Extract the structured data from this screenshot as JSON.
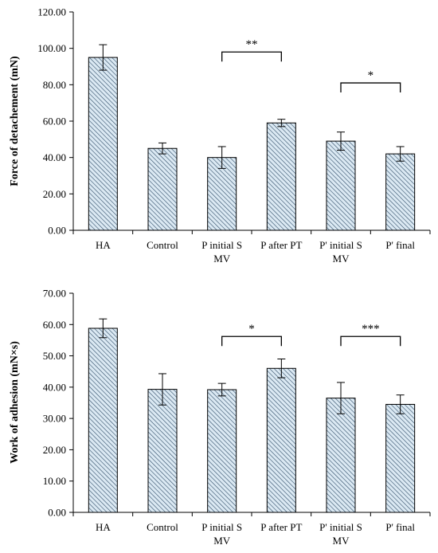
{
  "chart_data": [
    {
      "type": "bar",
      "ylabel": "Force of detachement (mN)",
      "ylim": [
        0,
        120
      ],
      "yticks": [
        "0.00",
        "20.00",
        "40.00",
        "60.00",
        "80.00",
        "100.00",
        "120.00"
      ],
      "categories": [
        [
          "HA"
        ],
        [
          "Control"
        ],
        [
          "P initial S",
          "MV"
        ],
        [
          "P after PT"
        ],
        [
          "P' initial S",
          "MV"
        ],
        [
          "P' final"
        ]
      ],
      "values": [
        95,
        45,
        40,
        59,
        49,
        42
      ],
      "errors": [
        7,
        3,
        6,
        2,
        5,
        4
      ],
      "significance": [
        {
          "from": 2,
          "to": 3,
          "label": "**",
          "level": 98
        },
        {
          "from": 4,
          "to": 5,
          "label": "*",
          "level": 81
        }
      ],
      "bar_fill": "#dbe9f3",
      "bar_hatch": "#2e4a66"
    },
    {
      "type": "bar",
      "ylabel": "Work of adhesion (mN×s)",
      "ylim": [
        0,
        70
      ],
      "yticks": [
        "0.00",
        "10.00",
        "20.00",
        "30.00",
        "40.00",
        "50.00",
        "60.00",
        "70.00"
      ],
      "categories": [
        [
          "HA"
        ],
        [
          "Control"
        ],
        [
          "P initial S",
          "MV"
        ],
        [
          "P after PT"
        ],
        [
          "P' initial S",
          "MV"
        ],
        [
          "P' final"
        ]
      ],
      "values": [
        58.8,
        39.3,
        39.2,
        46.0,
        36.5,
        34.5
      ],
      "errors": [
        3.0,
        5.0,
        2.0,
        3.0,
        5.0,
        3.0
      ],
      "significance": [
        {
          "from": 2,
          "to": 3,
          "label": "*",
          "level": 56.2
        },
        {
          "from": 4,
          "to": 5,
          "label": "***",
          "level": 56.2
        }
      ],
      "bar_fill": "#dbe9f3",
      "bar_hatch": "#2e4a66"
    }
  ]
}
